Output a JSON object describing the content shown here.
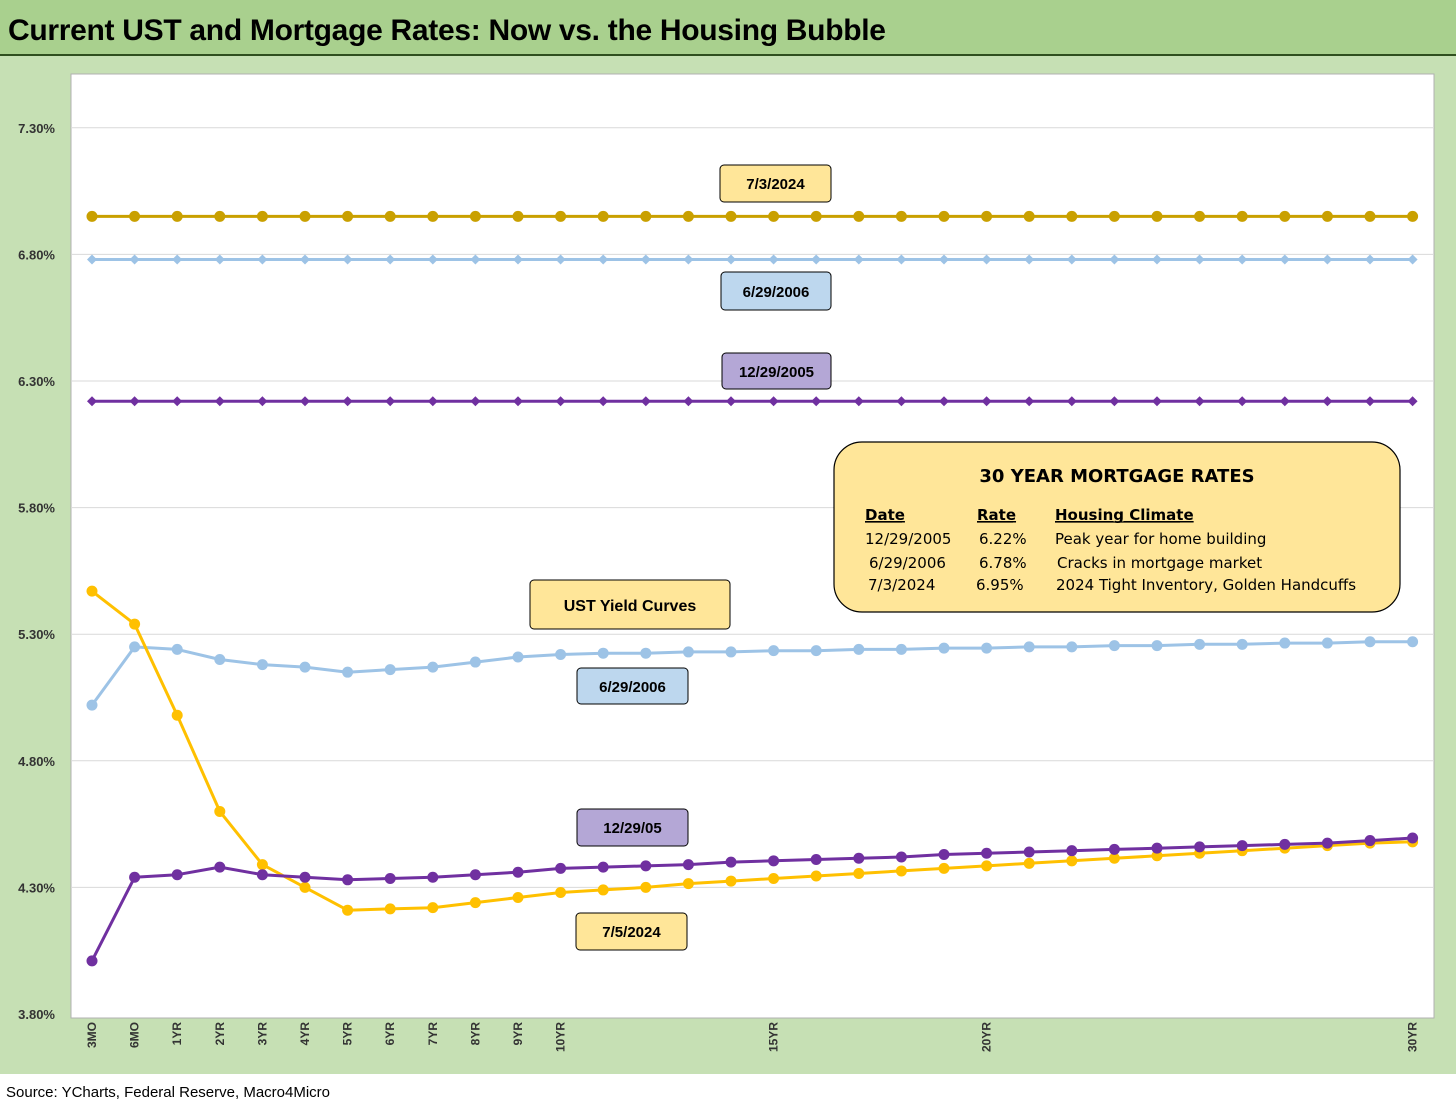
{
  "title": "Current UST and Mortgage Rates: Now vs. the Housing Bubble",
  "footer": "Source: YCharts, Federal Reserve, Macro4Micro",
  "colors": {
    "gold_dark": "#c9a000",
    "gold": "#ffc000",
    "light_blue": "#9dc3e6",
    "purple": "#7030a0",
    "label_yellow": "#ffe699",
    "label_blue": "#bdd7ee",
    "label_purple": "#b4a7d6",
    "chart_bg": "#c6e0b4"
  },
  "chart_data": {
    "type": "line",
    "ylim": [
      3.8,
      7.5
    ],
    "yticks": [
      "3.80%",
      "4.30%",
      "4.80%",
      "5.30%",
      "5.80%",
      "6.30%",
      "6.80%",
      "7.30%"
    ],
    "ytick_values": [
      3.8,
      4.3,
      4.8,
      5.3,
      5.8,
      6.3,
      6.8,
      7.3
    ],
    "grid": true,
    "x_count": 32,
    "x_tick_labels": [
      {
        "i": 0,
        "label": "3MO"
      },
      {
        "i": 1,
        "label": "6MO"
      },
      {
        "i": 2,
        "label": "1YR"
      },
      {
        "i": 3,
        "label": "2YR"
      },
      {
        "i": 4,
        "label": "3YR"
      },
      {
        "i": 5,
        "label": "4YR"
      },
      {
        "i": 6,
        "label": "5YR"
      },
      {
        "i": 7,
        "label": "6YR"
      },
      {
        "i": 8,
        "label": "7YR"
      },
      {
        "i": 9,
        "label": "8YR"
      },
      {
        "i": 10,
        "label": "9YR"
      },
      {
        "i": 11,
        "label": "10YR"
      },
      {
        "i": 16,
        "label": "15YR"
      },
      {
        "i": 21,
        "label": "20YR"
      },
      {
        "i": 31,
        "label": "30YR"
      }
    ],
    "series": [
      {
        "name": "7/3/2024",
        "color": "#c9a000",
        "marker": "circle",
        "values": [
          6.95,
          6.95,
          6.95,
          6.95,
          6.95,
          6.95,
          6.95,
          6.95,
          6.95,
          6.95,
          6.95,
          6.95,
          6.95,
          6.95,
          6.95,
          6.95,
          6.95,
          6.95,
          6.95,
          6.95,
          6.95,
          6.95,
          6.95,
          6.95,
          6.95,
          6.95,
          6.95,
          6.95,
          6.95,
          6.95,
          6.95,
          6.95
        ]
      },
      {
        "name": "6/29/2006",
        "color": "#9dc3e6",
        "marker": "diamond",
        "values": [
          6.78,
          6.78,
          6.78,
          6.78,
          6.78,
          6.78,
          6.78,
          6.78,
          6.78,
          6.78,
          6.78,
          6.78,
          6.78,
          6.78,
          6.78,
          6.78,
          6.78,
          6.78,
          6.78,
          6.78,
          6.78,
          6.78,
          6.78,
          6.78,
          6.78,
          6.78,
          6.78,
          6.78,
          6.78,
          6.78,
          6.78,
          6.78
        ]
      },
      {
        "name": "12/29/2005",
        "color": "#7030a0",
        "marker": "diamond",
        "values": [
          6.22,
          6.22,
          6.22,
          6.22,
          6.22,
          6.22,
          6.22,
          6.22,
          6.22,
          6.22,
          6.22,
          6.22,
          6.22,
          6.22,
          6.22,
          6.22,
          6.22,
          6.22,
          6.22,
          6.22,
          6.22,
          6.22,
          6.22,
          6.22,
          6.22,
          6.22,
          6.22,
          6.22,
          6.22,
          6.22,
          6.22,
          6.22
        ]
      },
      {
        "name": "6/29/2006",
        "color": "#9dc3e6",
        "marker": "circle",
        "values": [
          5.02,
          5.25,
          5.24,
          5.2,
          5.18,
          5.17,
          5.15,
          5.16,
          5.17,
          5.19,
          5.21,
          5.22,
          5.225,
          5.225,
          5.23,
          5.23,
          5.235,
          5.235,
          5.24,
          5.24,
          5.245,
          5.245,
          5.25,
          5.25,
          5.255,
          5.255,
          5.26,
          5.26,
          5.265,
          5.265,
          5.27,
          5.27
        ]
      },
      {
        "name": "7/5/2024",
        "color": "#ffc000",
        "marker": "circle",
        "values": [
          5.47,
          5.34,
          4.98,
          4.6,
          4.39,
          4.3,
          4.21,
          4.215,
          4.22,
          4.24,
          4.26,
          4.28,
          4.29,
          4.3,
          4.315,
          4.325,
          4.335,
          4.345,
          4.355,
          4.365,
          4.375,
          4.385,
          4.395,
          4.405,
          4.415,
          4.425,
          4.435,
          4.445,
          4.455,
          4.465,
          4.475,
          4.48
        ]
      },
      {
        "name": "12/29/05",
        "color": "#7030a0",
        "marker": "circle",
        "values": [
          4.01,
          4.34,
          4.35,
          4.38,
          4.35,
          4.34,
          4.33,
          4.335,
          4.34,
          4.35,
          4.36,
          4.375,
          4.38,
          4.385,
          4.39,
          4.4,
          4.405,
          4.41,
          4.415,
          4.42,
          4.43,
          4.435,
          4.44,
          4.445,
          4.45,
          4.455,
          4.46,
          4.465,
          4.47,
          4.475,
          4.485,
          4.495
        ]
      }
    ]
  },
  "labels": {
    "l_2024_mort": "7/3/2024",
    "l_2006_mort": "6/29/2006",
    "l_2005_mort": "12/29/2005",
    "l_ust": "UST Yield Curves",
    "l_2006_ust": "6/29/2006",
    "l_2005_ust": "12/29/05",
    "l_2024_ust": "7/5/2024"
  },
  "mortgage_box": {
    "title": "30 YEAR MORTGAGE RATES",
    "headers": [
      "Date",
      "Rate",
      "Housing Climate"
    ],
    "rows": [
      [
        "12/29/2005",
        "6.22%",
        "Peak year for home building"
      ],
      [
        "6/29/2006",
        "6.78%",
        "Cracks in mortgage market"
      ],
      [
        "7/3/2024",
        "6.95%",
        "2024 Tight Inventory, Golden Handcuffs"
      ]
    ]
  }
}
